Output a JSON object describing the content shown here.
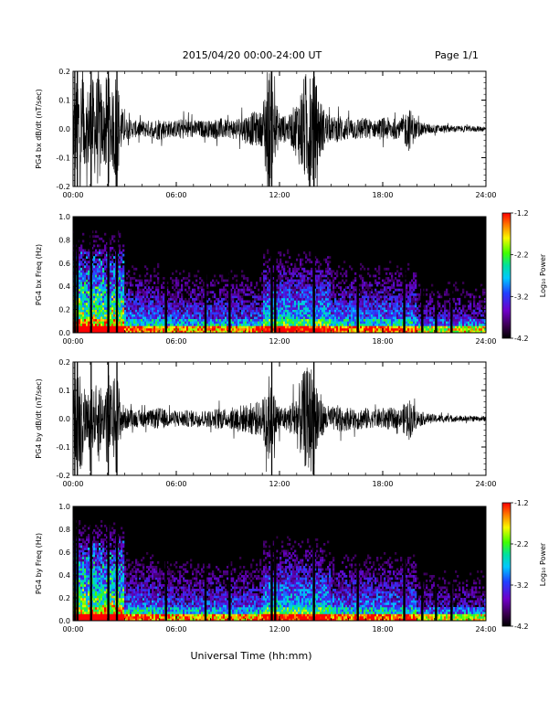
{
  "header": {
    "date_range": "2015/04/20  00:00-24:00 UT",
    "page": "Page 1/1"
  },
  "chart_data": [
    {
      "type": "line",
      "ylabel": "PG4 bx dB/dt (nT/sec)",
      "xlim": [
        0,
        24
      ],
      "ylim": [
        -0.2,
        0.2
      ],
      "y_ticks": [
        "0.2",
        "0.1",
        "0.0",
        "-0.1",
        "-0.2"
      ],
      "x_ticks": [
        "00:00",
        "06:00",
        "12:00",
        "18:00",
        "24:00"
      ],
      "envelope_hours": [
        0,
        0.25,
        0.5,
        0.75,
        1,
        1.25,
        1.5,
        1.75,
        2,
        2.25,
        2.5,
        2.75,
        3,
        3.5,
        4,
        4.5,
        5,
        5.5,
        6,
        6.5,
        7,
        7.5,
        8,
        8.5,
        9,
        9.5,
        10,
        10.5,
        11,
        11.25,
        11.5,
        11.75,
        12,
        12.5,
        13,
        13.5,
        14,
        14.5,
        15,
        15.5,
        16,
        16.5,
        17,
        17.5,
        18,
        18.5,
        19,
        19.5,
        20,
        20.5,
        21,
        22,
        23,
        24
      ],
      "envelope_amplitude": [
        0.12,
        0.22,
        0.2,
        0.12,
        0.2,
        0.16,
        0.22,
        0.1,
        0.22,
        0.12,
        0.22,
        0.1,
        0.04,
        0.03,
        0.03,
        0.03,
        0.04,
        0.03,
        0.03,
        0.04,
        0.03,
        0.03,
        0.03,
        0.04,
        0.03,
        0.04,
        0.05,
        0.06,
        0.06,
        0.22,
        0.22,
        0.1,
        0.06,
        0.04,
        0.1,
        0.2,
        0.2,
        0.08,
        0.04,
        0.05,
        0.04,
        0.04,
        0.04,
        0.03,
        0.04,
        0.04,
        0.03,
        0.08,
        0.03,
        0.02,
        0.015,
        0.012,
        0.01,
        0.01
      ]
    },
    {
      "type": "heatmap",
      "ylabel": "PG4 bx Freq (Hz)",
      "xlim": [
        0,
        24
      ],
      "ylim": [
        0,
        1.0
      ],
      "y_ticks": [
        "1.0",
        "0.8",
        "0.6",
        "0.4",
        "0.2",
        "0.0"
      ],
      "x_ticks": [
        "00:00",
        "06:00",
        "12:00",
        "18:00",
        "24:00"
      ],
      "colorbar": {
        "label": "Log₁₀ Power",
        "range": [
          -4.2,
          -1.2
        ],
        "ticks": [
          "-1.2",
          "-2.2",
          "-3.2",
          "-4.2"
        ]
      }
    },
    {
      "type": "line",
      "ylabel": "PG4 by dB/dt (nT/sec)",
      "xlim": [
        0,
        24
      ],
      "ylim": [
        -0.2,
        0.2
      ],
      "y_ticks": [
        "0.2",
        "0.1",
        "0.0",
        "-0.1",
        "-0.2"
      ],
      "x_ticks": [
        "00:00",
        "06:00",
        "12:00",
        "18:00",
        "24:00"
      ],
      "envelope_hours": [
        0,
        0.25,
        0.5,
        0.75,
        1,
        1.25,
        1.5,
        1.75,
        2,
        2.25,
        2.5,
        2.75,
        3,
        3.5,
        4,
        4.5,
        5,
        5.5,
        6,
        6.5,
        7,
        7.5,
        8,
        8.5,
        9,
        9.5,
        10,
        10.5,
        11,
        11.25,
        11.5,
        11.75,
        12,
        12.5,
        13,
        13.5,
        14,
        14.5,
        15,
        15.5,
        16,
        16.5,
        17,
        17.5,
        18,
        18.5,
        19,
        19.5,
        20,
        20.5,
        21,
        22,
        23,
        24
      ],
      "envelope_amplitude": [
        0.1,
        0.18,
        0.2,
        0.08,
        0.12,
        0.1,
        0.16,
        0.08,
        0.2,
        0.1,
        0.2,
        0.08,
        0.04,
        0.03,
        0.03,
        0.03,
        0.04,
        0.03,
        0.03,
        0.03,
        0.03,
        0.03,
        0.03,
        0.04,
        0.03,
        0.05,
        0.05,
        0.06,
        0.06,
        0.2,
        0.12,
        0.08,
        0.05,
        0.04,
        0.1,
        0.18,
        0.2,
        0.06,
        0.04,
        0.05,
        0.04,
        0.04,
        0.04,
        0.03,
        0.04,
        0.04,
        0.03,
        0.08,
        0.03,
        0.02,
        0.015,
        0.012,
        0.01,
        0.01
      ]
    },
    {
      "type": "heatmap",
      "ylabel": "PG4 by Freq (Hz)",
      "xlim": [
        0,
        24
      ],
      "ylim": [
        0,
        1.0
      ],
      "y_ticks": [
        "1.0",
        "0.8",
        "0.6",
        "0.4",
        "0.2",
        "0.0"
      ],
      "x_ticks": [
        "00:00",
        "06:00",
        "12:00",
        "18:00",
        "24:00"
      ],
      "colorbar": {
        "label": "Log₁₀ Power",
        "range": [
          -4.2,
          -1.2
        ],
        "ticks": [
          "-1.2",
          "-2.2",
          "-3.2",
          "-4.2"
        ]
      }
    }
  ],
  "xlabel": "Universal Time (hh:mm)",
  "data_gaps_hours": [
    0.1,
    0.25,
    1.05,
    2.05,
    2.55,
    5.4,
    7.7,
    9.1,
    11.55,
    11.75,
    14.0,
    16.55,
    19.25,
    20.3,
    21.1,
    22.0
  ]
}
